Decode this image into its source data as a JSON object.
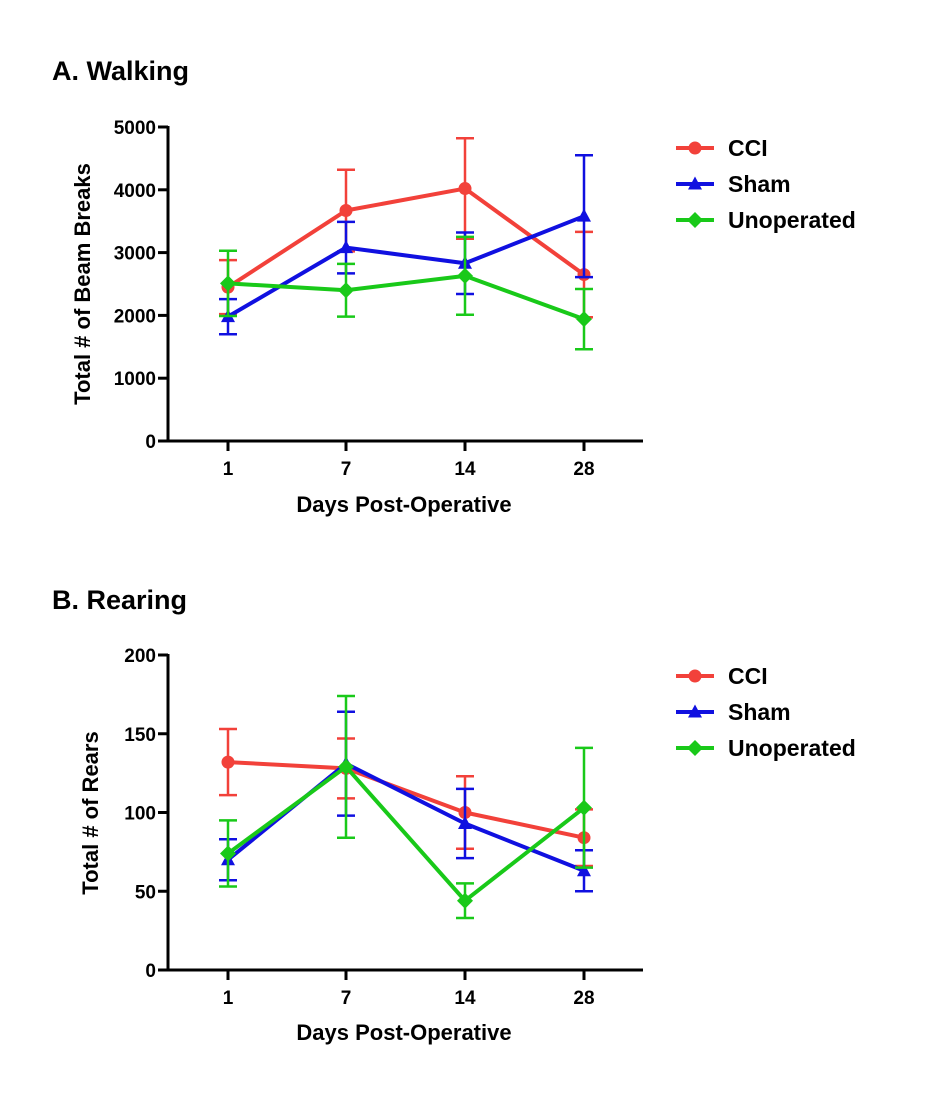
{
  "chart_data": [
    {
      "type": "line",
      "title": "A. Walking",
      "xlabel": "Days Post-Operative",
      "ylabel": "Total # of Beam Breaks",
      "categories": [
        "1",
        "7",
        "14",
        "28"
      ],
      "ylim": [
        0,
        5000
      ],
      "yticks": [
        0,
        1000,
        2000,
        3000,
        4000,
        5000
      ],
      "legend_position": "right",
      "grid": false,
      "series": [
        {
          "name": "CCI",
          "color": "#f2413a",
          "marker": "circle",
          "values": [
            2450,
            3670,
            4020,
            2650
          ],
          "error": [
            430,
            650,
            800,
            680
          ]
        },
        {
          "name": "Sham",
          "color": "#1010e0",
          "marker": "triangle",
          "values": [
            1980,
            3080,
            2830,
            3580
          ],
          "error": [
            280,
            410,
            490,
            970
          ]
        },
        {
          "name": "Unoperated",
          "color": "#19c919",
          "marker": "diamond",
          "values": [
            2510,
            2400,
            2630,
            1940
          ],
          "error": [
            520,
            420,
            620,
            480
          ]
        }
      ]
    },
    {
      "type": "line",
      "title": "B. Rearing",
      "xlabel": "Days Post-Operative",
      "ylabel": "Total # of Rears",
      "categories": [
        "1",
        "7",
        "14",
        "28"
      ],
      "ylim": [
        0,
        200
      ],
      "yticks": [
        0,
        50,
        100,
        150,
        200
      ],
      "legend_position": "right",
      "grid": false,
      "series": [
        {
          "name": "CCI",
          "color": "#f2413a",
          "marker": "circle",
          "values": [
            132,
            128,
            100,
            84
          ],
          "error": [
            21,
            19,
            23,
            18
          ]
        },
        {
          "name": "Sham",
          "color": "#1010e0",
          "marker": "triangle",
          "values": [
            70,
            131,
            93,
            63
          ],
          "error": [
            13,
            33,
            22,
            13
          ]
        },
        {
          "name": "Unoperated",
          "color": "#19c919",
          "marker": "diamond",
          "values": [
            74,
            129,
            44,
            103
          ],
          "error": [
            21,
            45,
            11,
            38
          ]
        }
      ]
    }
  ]
}
